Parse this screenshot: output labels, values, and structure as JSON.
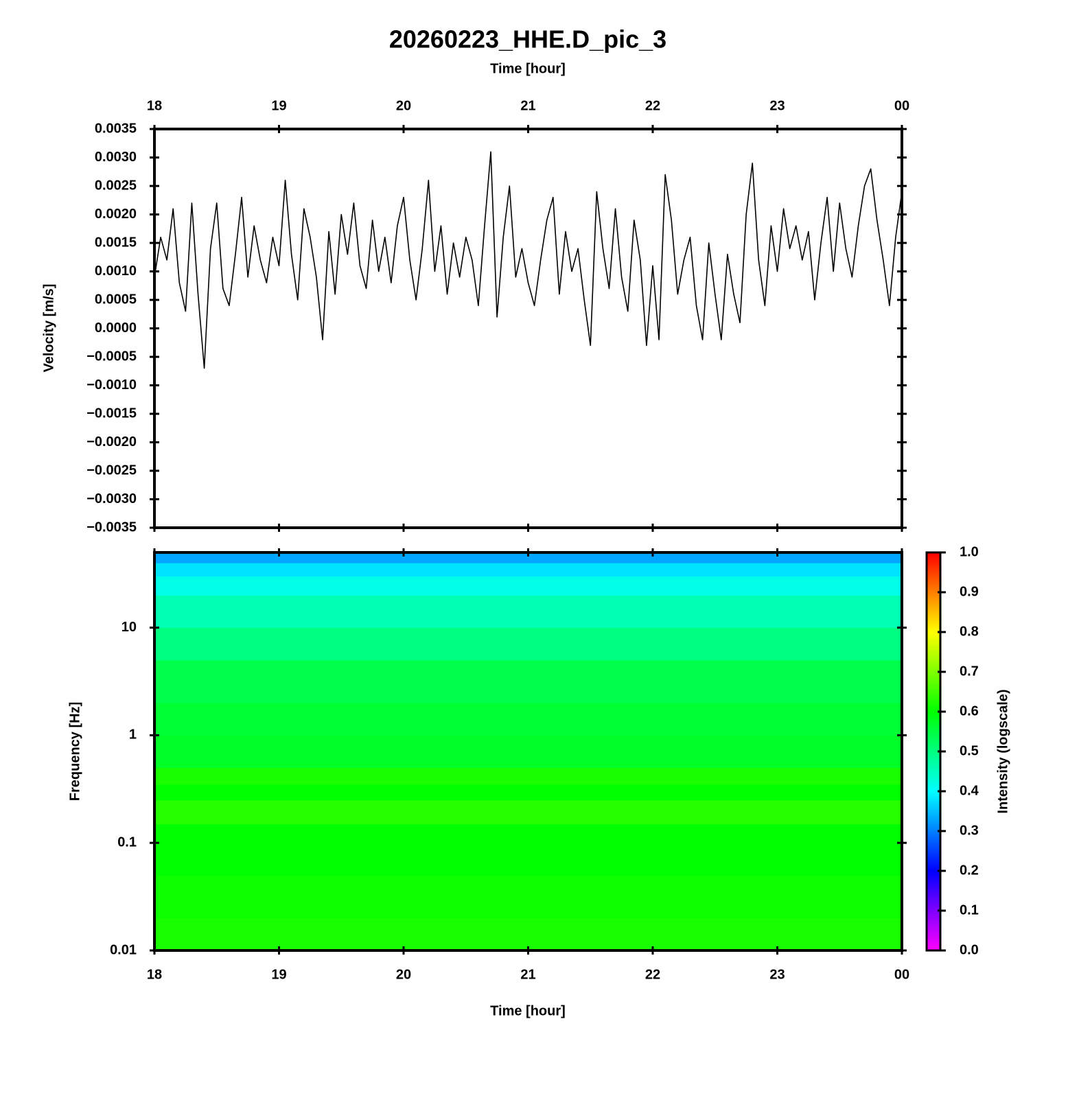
{
  "chart_data": [
    {
      "type": "line",
      "title": "20260223_HHE.D_pic_3",
      "xlabel": "Time [hour]",
      "ylabel": "Velocity [m/s]",
      "xaxis_position": "top",
      "color": "#000000",
      "xlim": [
        18,
        24
      ],
      "xticks": [
        18,
        19,
        20,
        21,
        22,
        23,
        {
          "value": 24,
          "label": "00"
        }
      ],
      "ylim": [
        -0.0035,
        0.0035
      ],
      "yticks": [
        {
          "value": -0.0035,
          "label": "−0.0035"
        },
        {
          "value": -0.003,
          "label": "−0.0030"
        },
        {
          "value": -0.0025,
          "label": "−0.0025"
        },
        {
          "value": -0.002,
          "label": "−0.0020"
        },
        {
          "value": -0.0015,
          "label": "−0.0015"
        },
        {
          "value": -0.001,
          "label": "−0.0010"
        },
        {
          "value": -0.0005,
          "label": "−0.0005"
        },
        {
          "value": 0,
          "label": "0.0000"
        },
        {
          "value": 0.0005,
          "label": "0.0005"
        },
        {
          "value": 0.001,
          "label": "0.0010"
        },
        {
          "value": 0.0015,
          "label": "0.0015"
        },
        {
          "value": 0.002,
          "label": "0.0020"
        },
        {
          "value": 0.0025,
          "label": "0.0025"
        },
        {
          "value": 0.003,
          "label": "0.0030"
        },
        0.0035
      ],
      "x": [
        18,
        18.05,
        18.1,
        18.15,
        18.2,
        18.25,
        18.3,
        18.35,
        18.4,
        18.45,
        18.5,
        18.55,
        18.6,
        18.65,
        18.7,
        18.75,
        18.8,
        18.85,
        18.9,
        18.95,
        19,
        19.05,
        19.1,
        19.15,
        19.2,
        19.25,
        19.3,
        19.35,
        19.4,
        19.45,
        19.5,
        19.55,
        19.6,
        19.65,
        19.7,
        19.75,
        19.8,
        19.85,
        19.9,
        19.95,
        20,
        20.05,
        20.1,
        20.15,
        20.2,
        20.25,
        20.3,
        20.35,
        20.4,
        20.45,
        20.5,
        20.55,
        20.6,
        20.65,
        20.7,
        20.75,
        20.8,
        20.85,
        20.9,
        20.95,
        21,
        21.05,
        21.1,
        21.15,
        21.2,
        21.25,
        21.3,
        21.35,
        21.4,
        21.45,
        21.5,
        21.55,
        21.6,
        21.65,
        21.7,
        21.75,
        21.8,
        21.85,
        21.9,
        21.95,
        22,
        22.05,
        22.1,
        22.15,
        22.2,
        22.25,
        22.3,
        22.35,
        22.4,
        22.45,
        22.5,
        22.55,
        22.6,
        22.65,
        22.7,
        22.75,
        22.8,
        22.85,
        22.9,
        22.95,
        23,
        23.05,
        23.1,
        23.15,
        23.2,
        23.25,
        23.3,
        23.35,
        23.4,
        23.45,
        23.5,
        23.55,
        23.6,
        23.65,
        23.7,
        23.75,
        23.8,
        23.85,
        23.9,
        23.95,
        24
      ],
      "values": [
        0.0009,
        0.0016,
        0.0012,
        0.0021,
        0.0008,
        0.0003,
        0.0022,
        0.0006,
        -0.0007,
        0.0014,
        0.0022,
        0.0007,
        0.0004,
        0.0013,
        0.0023,
        0.0009,
        0.0018,
        0.0012,
        0.0008,
        0.0016,
        0.0011,
        0.0026,
        0.0013,
        0.0005,
        0.0021,
        0.0016,
        0.0009,
        -0.0002,
        0.0017,
        0.0006,
        0.002,
        0.0013,
        0.0022,
        0.0011,
        0.0007,
        0.0019,
        0.001,
        0.0016,
        0.0008,
        0.0018,
        0.0023,
        0.0012,
        0.0005,
        0.0014,
        0.0026,
        0.001,
        0.0018,
        0.0006,
        0.0015,
        0.0009,
        0.0016,
        0.0012,
        0.0004,
        0.0018,
        0.0031,
        0.0002,
        0.0016,
        0.0025,
        0.0009,
        0.0014,
        0.0008,
        0.0004,
        0.0012,
        0.0019,
        0.0023,
        0.0006,
        0.0017,
        0.001,
        0.0014,
        0.0005,
        -0.0003,
        0.0024,
        0.0014,
        0.0007,
        0.0021,
        0.0009,
        0.0003,
        0.0019,
        0.0012,
        -0.0003,
        0.0011,
        -0.0002,
        0.0027,
        0.0019,
        0.0006,
        0.0012,
        0.0016,
        0.0004,
        -0.0002,
        0.0015,
        0.0006,
        -0.0002,
        0.0013,
        0.0006,
        0.0001,
        0.002,
        0.0029,
        0.0012,
        0.0004,
        0.0018,
        0.001,
        0.0021,
        0.0014,
        0.0018,
        0.0012,
        0.0017,
        0.0005,
        0.0015,
        0.0023,
        0.001,
        0.0022,
        0.0014,
        0.0009,
        0.0018,
        0.0025,
        0.0028,
        0.0019,
        0.0012,
        0.0004,
        0.0016,
        0.0024
      ]
    },
    {
      "type": "heatmap",
      "xlabel": "Time [hour]",
      "ylabel": "Frequency [Hz]",
      "log_y": true,
      "xlim": [
        18,
        24
      ],
      "xticks": [
        18,
        19,
        20,
        21,
        22,
        23,
        {
          "value": 24,
          "label": "00"
        }
      ],
      "ylim": [
        0.01,
        50
      ],
      "yticks": [
        0.01,
        0.1,
        1,
        10
      ],
      "y": [
        0.01,
        0.02,
        0.05,
        0.1,
        0.15,
        0.25,
        0.35,
        0.5,
        1,
        2,
        5,
        10,
        20,
        30,
        40,
        50
      ],
      "values": [
        0.62,
        0.61,
        0.6,
        0.6,
        0.63,
        0.6,
        0.62,
        0.57,
        0.56,
        0.54,
        0.5,
        0.46,
        0.42,
        0.38,
        0.33
      ],
      "colormap": [
        {
          "value": 0,
          "color": "#ff00ff"
        },
        {
          "value": 0.2,
          "color": "#0000ff"
        },
        {
          "value": 0.4,
          "color": "#00ffff"
        },
        {
          "value": 0.6,
          "color": "#00ff00"
        },
        {
          "value": 0.8,
          "color": "#ffff00"
        },
        {
          "value": 1,
          "color": "#ff0000"
        }
      ],
      "colorbar": {
        "label": "Intensity (logscale)",
        "lim": [
          0,
          1
        ],
        "ticks": [
          {
            "value": 0,
            "label": "0.0"
          },
          0.1,
          0.2,
          0.3,
          0.4,
          0.5,
          0.6,
          0.7,
          0.8,
          0.9,
          {
            "value": 1,
            "label": "1.0"
          }
        ]
      }
    }
  ]
}
